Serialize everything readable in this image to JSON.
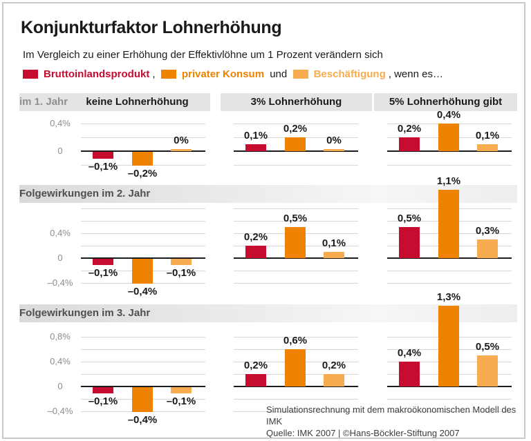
{
  "title": "Konjunkturfaktor Lohnerhöhung",
  "subtitle": "Im Vergleich zu einer Erhöhung der Effektivlöhne um 1 Prozent verändern sich",
  "legend": {
    "items": [
      {
        "label": "Bruttoinlandsprodukt",
        "color": "#C60D30",
        "suffix": ",  "
      },
      {
        "label": "privater Konsum",
        "color": "#EF8200",
        "suffix": " und  "
      },
      {
        "label": "Beschäftigung",
        "color": "#F7AC50",
        "suffix": ", wenn es…"
      }
    ]
  },
  "panels": {
    "row1_prefix": "im 1. Jahr",
    "col_headers": [
      "keine Lohnerhöhung",
      "3% Lohnerhöhung",
      "5% Lohnerhöhung gibt"
    ],
    "row2_header": "Folgewirkungen im 2. Jahr",
    "row3_header": "Folgewirkungen im 3. Jahr"
  },
  "footer": {
    "line1": "Simulationsrechnung mit dem makroökonomischen Modell des IMK",
    "line2": "Quelle: IMK 2007 | ©Hans-Böckler-Stiftung 2007"
  },
  "chart_data": {
    "type": "bar",
    "unit": "% change",
    "series": [
      "Bruttoinlandsprodukt",
      "privater Konsum",
      "Beschäftigung"
    ],
    "scenarios": [
      "keine Lohnerhöhung",
      "3% Lohnerhöhung",
      "5% Lohnerhöhung gibt"
    ],
    "grid": "horizontal, every 0.2",
    "rows": [
      {
        "label": "im 1. Jahr",
        "ylim": [
          -0.2,
          0.4
        ],
        "yticks": [
          {
            "v": 0.4,
            "label": "0,4%"
          },
          {
            "v": 0,
            "label": "0"
          }
        ],
        "charts": [
          {
            "scenario": "keine Lohnerhöhung",
            "values": [
              -0.1,
              -0.2,
              0
            ],
            "labels": [
              "–0,1%",
              "–0,2%",
              "0%"
            ]
          },
          {
            "scenario": "3% Lohnerhöhung",
            "values": [
              0.1,
              0.2,
              0
            ],
            "labels": [
              "0,1%",
              "0,2%",
              "0%"
            ]
          },
          {
            "scenario": "5% Lohnerhöhung gibt",
            "values": [
              0.2,
              0.4,
              0.1
            ],
            "labels": [
              "0,2%",
              "0,4%",
              "0,1%"
            ]
          }
        ]
      },
      {
        "label": "Folgewirkungen im 2. Jahr",
        "ylim": [
          -0.4,
          0.8
        ],
        "yticks": [
          {
            "v": 0.4,
            "label": "0,4%"
          },
          {
            "v": 0,
            "label": "0"
          },
          {
            "v": -0.4,
            "label": "–0,4%"
          }
        ],
        "charts": [
          {
            "scenario": "keine Lohnerhöhung",
            "values": [
              -0.1,
              -0.4,
              -0.1
            ],
            "labels": [
              "–0,1%",
              "–0,4%",
              "–0,1%"
            ]
          },
          {
            "scenario": "3% Lohnerhöhung",
            "values": [
              0.2,
              0.5,
              0.1
            ],
            "labels": [
              "0,2%",
              "0,5%",
              "0,1%"
            ]
          },
          {
            "scenario": "5% Lohnerhöhung gibt",
            "values": [
              0.5,
              1.1,
              0.3
            ],
            "labels": [
              "0,5%",
              "1,1%",
              "0,3%"
            ]
          }
        ]
      },
      {
        "label": "Folgewirkungen im 3. Jahr",
        "ylim": [
          -0.4,
          0.8
        ],
        "yticks": [
          {
            "v": 0.8,
            "label": "0,8%"
          },
          {
            "v": 0.4,
            "label": "0,4%"
          },
          {
            "v": 0,
            "label": "0"
          },
          {
            "v": -0.4,
            "label": "–0,4%"
          }
        ],
        "charts": [
          {
            "scenario": "keine Lohnerhöhung",
            "values": [
              -0.1,
              -0.4,
              -0.1
            ],
            "labels": [
              "–0,1%",
              "–0,4%",
              "–0,1%"
            ]
          },
          {
            "scenario": "3% Lohnerhöhung",
            "values": [
              0.2,
              0.6,
              0.2
            ],
            "labels": [
              "0,2%",
              "0,6%",
              "0,2%"
            ]
          },
          {
            "scenario": "5% Lohnerhöhung gibt",
            "values": [
              0.4,
              1.3,
              0.5
            ],
            "labels": [
              "0,4%",
              "1,3%",
              "0,5%"
            ]
          }
        ]
      }
    ]
  }
}
